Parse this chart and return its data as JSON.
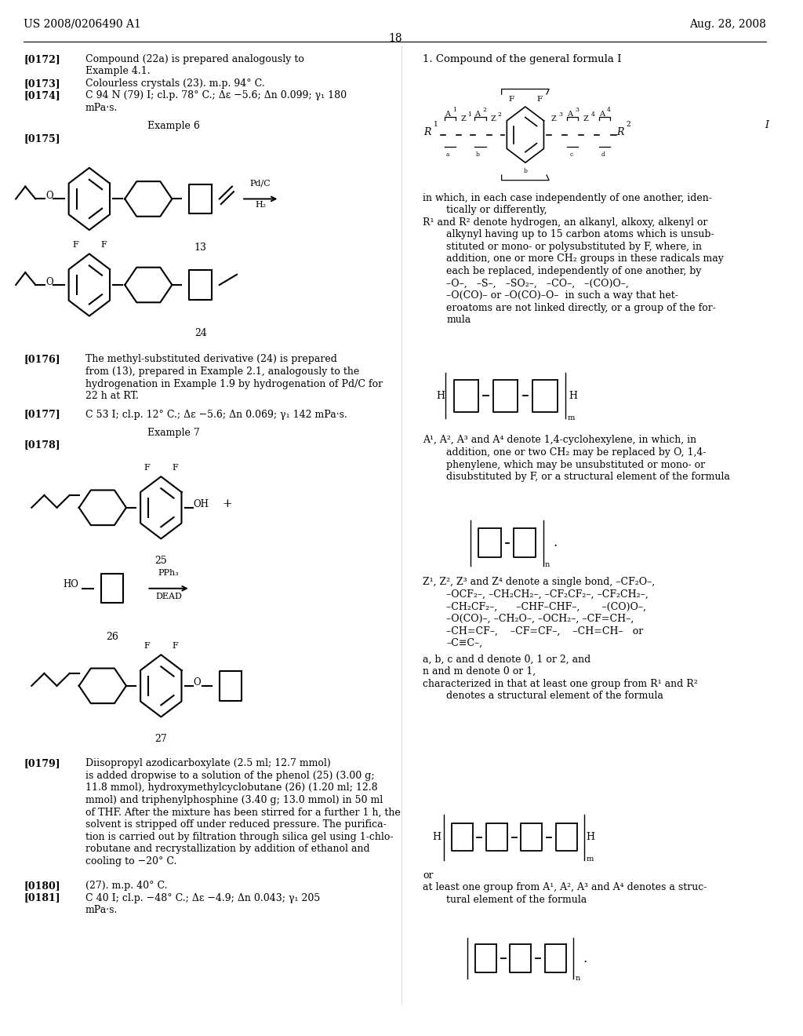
{
  "page_number": "18",
  "header_left": "US 2008/0206490 A1",
  "header_right": "Aug. 28, 2008",
  "background_color": "#ffffff",
  "text_color": "#000000",
  "font_size_body": 9.0,
  "font_size_header": 10.0
}
